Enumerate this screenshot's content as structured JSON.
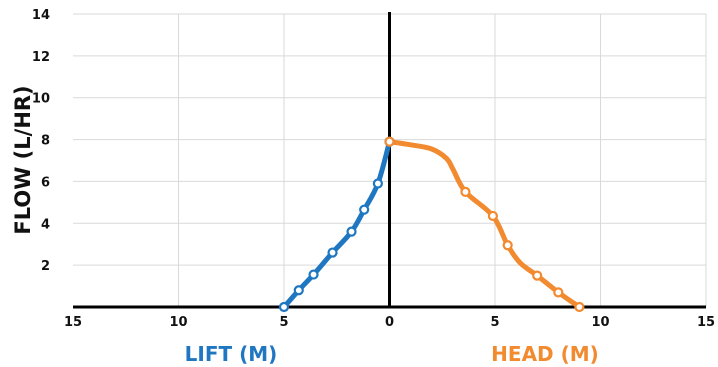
{
  "chart_data": {
    "type": "line",
    "ylabel": "FLOW (L/HR)",
    "xlabel_left": "LIFT (M)",
    "xlabel_right": "HEAD (M)",
    "xlim": [
      -15,
      15
    ],
    "ylim": [
      0,
      14
    ],
    "x_ticks": [
      -15,
      -10,
      -5,
      0,
      5,
      10,
      15
    ],
    "x_tick_labels": [
      "15",
      "10",
      "5",
      "0",
      "5",
      "10",
      "15"
    ],
    "y_ticks": [
      2,
      4,
      6,
      8,
      10,
      12,
      14
    ],
    "y_tick_labels": [
      "2",
      "4",
      "6",
      "8",
      "10",
      "12",
      "14"
    ],
    "grid": true,
    "colors": {
      "lift": "#1f77c2",
      "head": "#f28a30",
      "axis": "#000000",
      "grid": "#d9d9d9"
    },
    "series": [
      {
        "key": "lift",
        "x": [
          -5,
          -4.3,
          -3.6,
          -2.7,
          -1.8,
          -1.2,
          -0.55,
          0
        ],
        "y": [
          0,
          0.8,
          1.55,
          2.6,
          3.6,
          4.65,
          5.9,
          7.9
        ],
        "markers": [
          true,
          true,
          true,
          true,
          true,
          true,
          true,
          true
        ]
      },
      {
        "key": "head",
        "x": [
          0,
          1.0,
          2.0,
          2.7,
          3.0,
          3.6,
          4.9,
          5.6,
          6.2,
          7.0,
          8.0,
          9.0
        ],
        "y": [
          7.9,
          7.75,
          7.55,
          7.1,
          6.6,
          5.5,
          4.35,
          2.95,
          2.1,
          1.5,
          0.7,
          0
        ],
        "markers": [
          true,
          false,
          false,
          false,
          false,
          true,
          true,
          true,
          false,
          true,
          true,
          true
        ]
      }
    ]
  }
}
